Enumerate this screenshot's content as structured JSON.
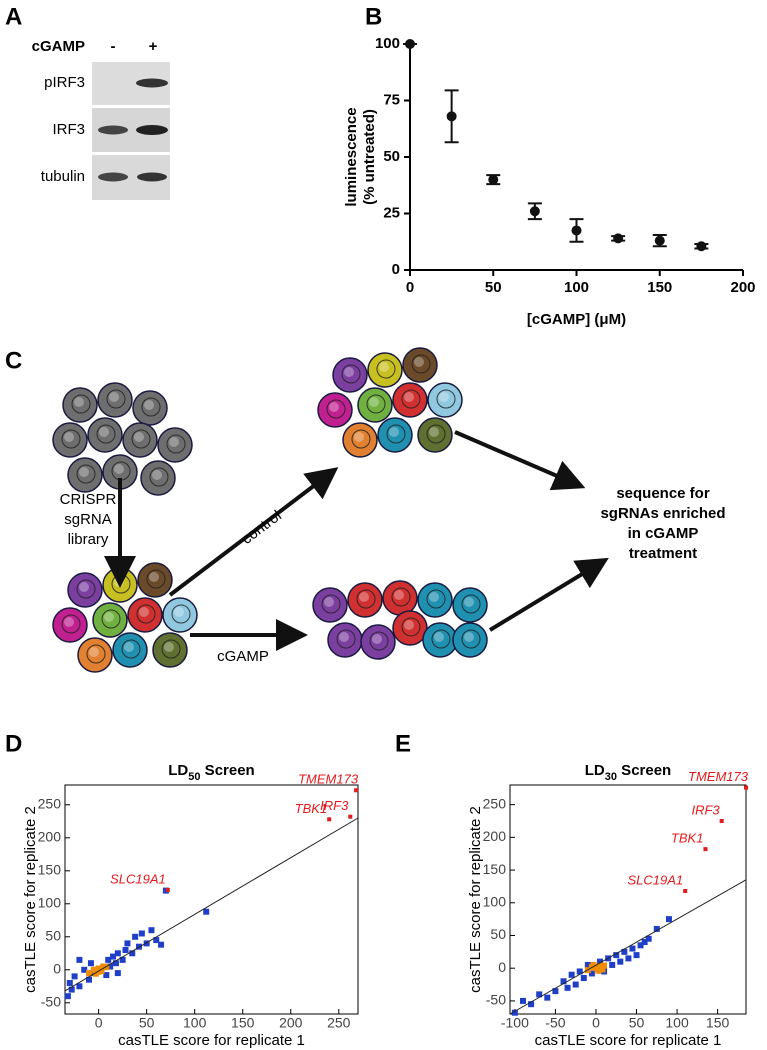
{
  "panels": [
    "A",
    "B",
    "C",
    "D",
    "E"
  ],
  "blot": {
    "treatment": "cGAMP",
    "lanes": [
      "-",
      "+"
    ],
    "rows": [
      "pIRF3",
      "IRF3",
      "tubulin"
    ]
  },
  "diagram": {
    "library": [
      "CRISPR",
      "sgRNA",
      "library"
    ],
    "arrows": [
      "control",
      "cGAMP"
    ],
    "result": [
      "sequence for",
      "sgRNAs enriched",
      "in cGAMP",
      "treatment"
    ]
  },
  "chart_data": [
    {
      "type": "errorbar",
      "x_label": "[cGAMP] (μM)",
      "y_label": [
        "luminescence",
        "(% untreated)"
      ],
      "x": [
        0,
        25,
        50,
        75,
        100,
        125,
        150,
        175
      ],
      "values": [
        100,
        68,
        40,
        26,
        17.5,
        14,
        13,
        10.5
      ],
      "errors": [
        0,
        11.5,
        2,
        3.5,
        5,
        1,
        2.5,
        1
      ],
      "color": "#111111",
      "xlim": [
        0,
        200
      ],
      "xticks": [
        0,
        50,
        100,
        150,
        200
      ],
      "ylim": [
        0,
        100
      ],
      "yticks": [
        0,
        25,
        50,
        75,
        100
      ]
    },
    {
      "type": "scatter",
      "title": [
        "LD",
        "50",
        " Screen"
      ],
      "x_label": "casTLE score for replicate 1",
      "y_label": "casTLE score for replicate 2",
      "xlim": [
        -35,
        270
      ],
      "xticks": [
        0,
        50,
        100,
        150,
        200,
        250
      ],
      "ylim": [
        -67,
        280
      ],
      "yticks": [
        -50,
        0,
        50,
        100,
        150,
        200,
        250
      ],
      "cloud": {
        "color": "#1f3fc8",
        "x": [
          -32,
          -28,
          -30,
          -25,
          -20,
          -15,
          -10,
          -8,
          -5,
          0,
          5,
          8,
          10,
          12,
          15,
          18,
          20,
          25,
          28,
          30,
          35,
          38,
          42,
          45,
          50,
          55,
          60,
          65,
          70,
          112,
          -20,
          20
        ],
        "y": [
          -40,
          -30,
          -20,
          -10,
          -25,
          0,
          -15,
          10,
          -5,
          0,
          5,
          -8,
          15,
          5,
          20,
          10,
          25,
          15,
          30,
          40,
          25,
          50,
          35,
          55,
          40,
          60,
          45,
          38,
          120,
          88,
          15,
          -5
        ]
      },
      "core": {
        "color": "#f08c00",
        "x": [
          -10,
          -5,
          0,
          3,
          5,
          -3,
          8,
          0
        ],
        "y": [
          -5,
          0,
          2,
          -2,
          5,
          -6,
          4,
          -3
        ]
      },
      "highlights": {
        "color": "#e41a1c",
        "labels": [
          "TMEM173",
          "TBK1",
          "IRF3",
          "SLC19A1"
        ],
        "x": [
          268,
          240,
          262,
          72
        ],
        "y": [
          272,
          228,
          232,
          121
        ]
      },
      "fit": {
        "x": [
          -35,
          270
        ],
        "y": [
          -32,
          230
        ]
      }
    },
    {
      "type": "scatter",
      "title": [
        "LD",
        "30",
        " Screen"
      ],
      "x_label": "casTLE score for replicate 1",
      "y_label": "casTLE score for replicate 2",
      "xlim": [
        -106,
        185
      ],
      "xticks": [
        -100,
        -50,
        0,
        50,
        100,
        150
      ],
      "ylim": [
        -70,
        280
      ],
      "yticks": [
        -50,
        0,
        50,
        100,
        150,
        200,
        250
      ],
      "cloud": {
        "color": "#1f3fc8",
        "x": [
          -100,
          -80,
          -60,
          -50,
          -40,
          -35,
          -30,
          -25,
          -20,
          -15,
          -10,
          -5,
          0,
          5,
          10,
          15,
          20,
          25,
          30,
          35,
          40,
          45,
          50,
          55,
          60,
          65,
          75,
          90,
          -70,
          -90
        ],
        "y": [
          -68,
          -55,
          -45,
          -35,
          -20,
          -30,
          -10,
          -25,
          -5,
          -15,
          5,
          -8,
          0,
          10,
          -5,
          15,
          5,
          20,
          10,
          25,
          15,
          30,
          20,
          35,
          40,
          45,
          60,
          75,
          -40,
          -50
        ]
      },
      "core": {
        "color": "#f08c00",
        "x": [
          -10,
          -5,
          0,
          5,
          3,
          -3,
          10,
          8
        ],
        "y": [
          -3,
          2,
          0,
          3,
          -4,
          5,
          4,
          -2
        ]
      },
      "highlights": {
        "color": "#e41a1c",
        "labels": [
          "TMEM173",
          "IRF3",
          "TBK1",
          "SLC19A1"
        ],
        "x": [
          185,
          155,
          135,
          110
        ],
        "y": [
          276,
          225,
          182,
          118
        ]
      },
      "fit": {
        "x": [
          -106,
          185
        ],
        "y": [
          -70,
          135
        ]
      }
    }
  ]
}
